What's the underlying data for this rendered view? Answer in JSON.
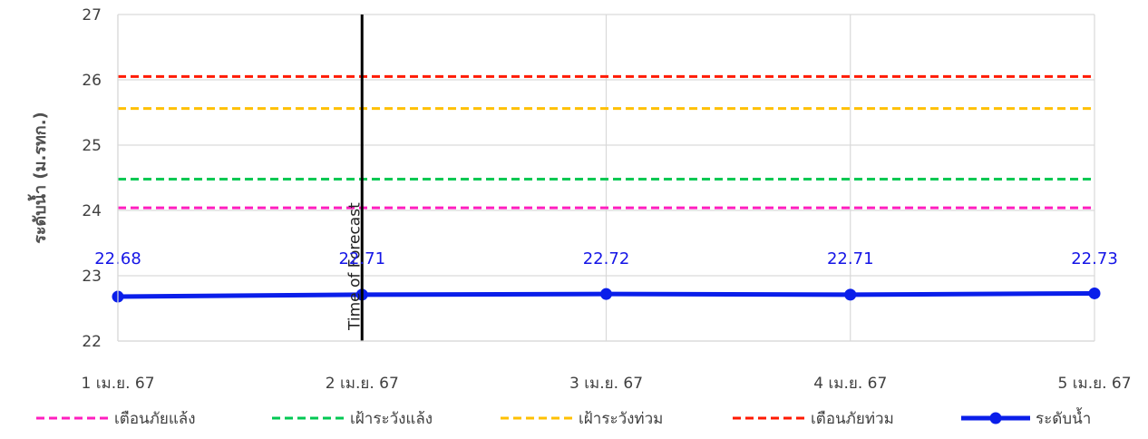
{
  "chart_data": {
    "type": "line",
    "ylabel": "ระดับน้ำ (ม.รทก.)",
    "xlabel": "",
    "title": "",
    "categories": [
      "1 เม.ย. 67",
      "2 เม.ย. 67",
      "3 เม.ย. 67",
      "4 เม.ย. 67",
      "5 เม.ย. 67"
    ],
    "ylim": [
      22,
      27
    ],
    "yticks": [
      22,
      23,
      24,
      25,
      26,
      27
    ],
    "grid": true,
    "legend_position": "bottom",
    "series": [
      {
        "name": "ระดับน้ำ",
        "values": [
          22.68,
          22.71,
          22.72,
          22.71,
          22.73
        ],
        "labels": [
          "22.68",
          "22.71",
          "22.72",
          "22.71",
          "22.73"
        ],
        "color": "#0a1eea",
        "style": "solid-markers"
      }
    ],
    "thresholds": [
      {
        "name": "เตือนภัยแล้ง",
        "value": 24.04,
        "color": "#ff1fbf",
        "style": "dashed"
      },
      {
        "name": "เฝ้าระวังแล้ง",
        "value": 24.48,
        "color": "#00c853",
        "style": "dashed"
      },
      {
        "name": "เฝ้าระวังท่วม",
        "value": 25.56,
        "color": "#ffc000",
        "style": "dashed"
      },
      {
        "name": "เตือนภัยท่วม",
        "value": 26.05,
        "color": "#ff1a00",
        "style": "dashed"
      }
    ],
    "annotations": [
      {
        "text": "Time of Forecast",
        "at_category": "2 เม.ย. 67",
        "color": "#000000"
      }
    ],
    "legend_order": [
      "เตือนภัยแล้ง",
      "เฝ้าระวังแล้ง",
      "เฝ้าระวังท่วม",
      "เตือนภัยท่วม",
      "ระดับน้ำ"
    ]
  }
}
